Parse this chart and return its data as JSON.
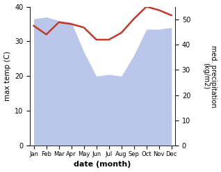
{
  "months": [
    "Jan",
    "Feb",
    "Mar",
    "Apr",
    "May",
    "Jun",
    "Jul",
    "Aug",
    "Sep",
    "Oct",
    "Nov",
    "Dec"
  ],
  "temp_max": [
    34.5,
    32.0,
    35.5,
    35.0,
    34.0,
    30.5,
    30.5,
    32.5,
    36.5,
    40.0,
    39.0,
    37.5
  ],
  "precipitation": [
    36.5,
    37.0,
    36.0,
    35.5,
    27.0,
    20.0,
    20.5,
    20.0,
    26.0,
    33.5,
    33.5,
    34.0
  ],
  "temp_ylim": [
    0,
    40
  ],
  "precip_ylim": [
    0,
    55
  ],
  "temp_color": "#c0392b",
  "precip_fill_color": "#b0bce8",
  "precip_fill_alpha": 0.85,
  "xlabel": "date (month)",
  "ylabel_left": "max temp (C)",
  "ylabel_right": "med. precipitation\n(kg/m2)",
  "temp_yticks": [
    0,
    10,
    20,
    30,
    40
  ],
  "precip_yticks": [
    0,
    10,
    20,
    30,
    40,
    50
  ],
  "background_color": "#ffffff"
}
